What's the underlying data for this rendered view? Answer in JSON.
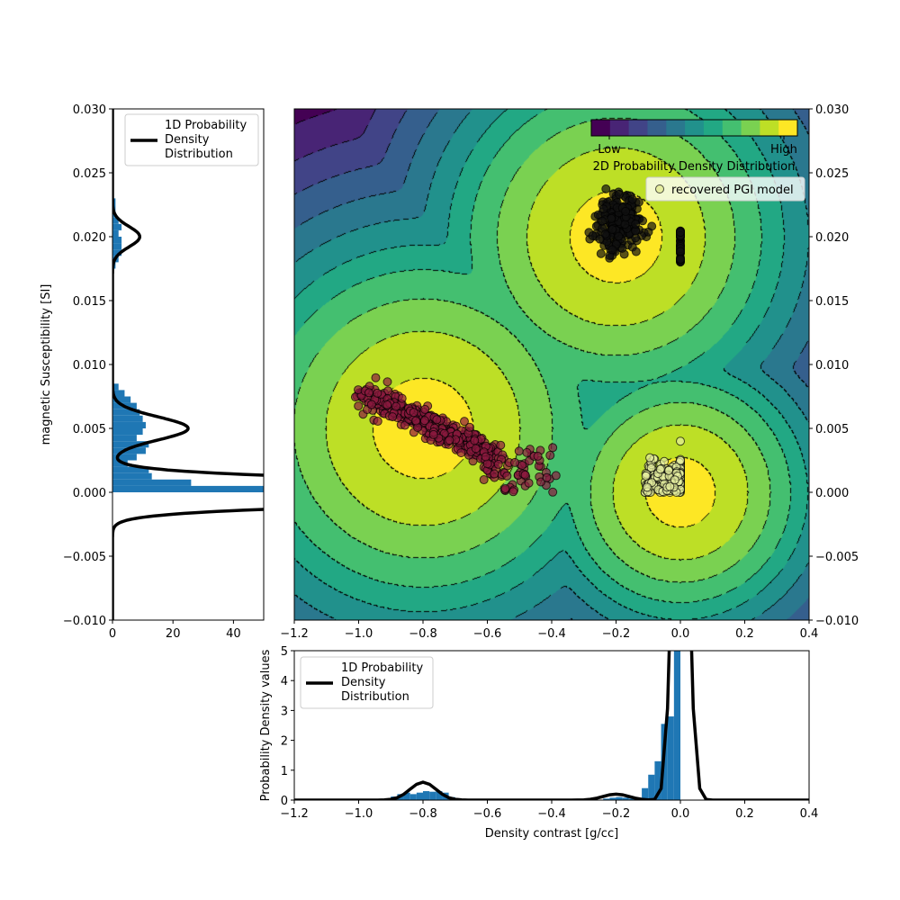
{
  "chart_data": [
    {
      "type": "scatter",
      "xlim": [
        -1.2,
        0.4
      ],
      "ylim": [
        -0.01,
        0.03
      ],
      "xticks": [
        "−1.2",
        "−1.0",
        "−0.8",
        "−0.6",
        "−0.4",
        "−0.2",
        "0.0",
        "0.2",
        "0.4"
      ],
      "xtick_values": [
        -1.2,
        -1.0,
        -0.8,
        -0.6,
        -0.4,
        -0.2,
        0.0,
        0.2,
        0.4
      ],
      "yticks": [
        "−0.010",
        "−0.005",
        "0.000",
        "0.005",
        "0.010",
        "0.015",
        "0.020",
        "0.025",
        "0.030"
      ],
      "ytick_values": [
        -0.01,
        -0.005,
        0,
        0.005,
        0.01,
        0.015,
        0.02,
        0.025,
        0.03
      ],
      "background": {
        "type": "filled-contour",
        "colormap": "viridis",
        "line_style": "dash-dot",
        "components": [
          {
            "mean": [
              -0.8,
              0.005
            ]
          },
          {
            "mean": [
              -0.2,
              0.02
            ]
          },
          {
            "mean": [
              0.0,
              0.0
            ]
          }
        ]
      },
      "colorbar": {
        "label": "2D Probability Density Distribution",
        "low": "Low",
        "high": "High",
        "colors": [
          "#440154",
          "#482475",
          "#414487",
          "#355f8d",
          "#2a788e",
          "#21918c",
          "#22a884",
          "#44bf70",
          "#7ad151",
          "#bddf26",
          "#fde725"
        ]
      },
      "legend": {
        "entries": [
          "recovered PGI model"
        ],
        "placement": "top-right"
      },
      "clusters": [
        {
          "color": "#8b1a3e",
          "from": [
            -0.98,
            0.0077
          ],
          "to": [
            -0.58,
            0.0028
          ],
          "count": 450
        },
        {
          "color": "#111111",
          "center": [
            -0.19,
            0.021
          ],
          "spread": [
            0.035,
            0.0011
          ],
          "count": 260
        },
        {
          "color": "#e6eea0",
          "center": [
            -0.05,
            0.001
          ],
          "spread": [
            0.04,
            0.0007
          ],
          "count": 200
        }
      ]
    },
    {
      "type": "bar",
      "orientation": "horizontal",
      "ylabel": "magnetic Susceptibility [SI]",
      "xlim": [
        0,
        50
      ],
      "xticks": [
        "0",
        "20",
        "40"
      ],
      "xtick_values": [
        0,
        20,
        40
      ],
      "legend": {
        "entries": [
          "1D Probability\nDensity\nDistribution"
        ],
        "lines": [
          "1D Probability",
          "Density",
          "Distribution"
        ],
        "placement": "top-right"
      },
      "bin_width": 0.0005,
      "bins_start": [
        0.0,
        0.0005,
        0.001,
        0.0015,
        0.002,
        0.0025,
        0.003,
        0.0035,
        0.004,
        0.0045,
        0.005,
        0.0055,
        0.006,
        0.0065,
        0.007,
        0.0075,
        0.008,
        0.0175,
        0.018,
        0.0185,
        0.019,
        0.0195,
        0.02,
        0.0205,
        0.021,
        0.0215,
        0.022,
        0.0225
      ],
      "counts": [
        60,
        26,
        13,
        12,
        5,
        8,
        11,
        12,
        8,
        10,
        11,
        10,
        9,
        8,
        6,
        4,
        2,
        1,
        2,
        3,
        3,
        3,
        2,
        3,
        2,
        1,
        1,
        1
      ],
      "kde": [
        {
          "mean": 0.0,
          "sd": 0.0008,
          "peak": 200
        },
        {
          "mean": 0.005,
          "sd": 0.0009,
          "peak": 25
        },
        {
          "mean": 0.02,
          "sd": 0.0008,
          "peak": 9
        }
      ]
    },
    {
      "type": "bar",
      "xlabel": "Density contrast [g/cc]",
      "ylabel": "Probability Density values",
      "xlim": [
        -1.2,
        0.4
      ],
      "ylim": [
        0,
        5
      ],
      "xticks": [
        "−1.2",
        "−1.0",
        "−0.8",
        "−0.6",
        "−0.4",
        "−0.2",
        "0.0",
        "0.2",
        "0.4"
      ],
      "xtick_values": [
        -1.2,
        -1.0,
        -0.8,
        -0.6,
        -0.4,
        -0.2,
        0.0,
        0.2,
        0.4
      ],
      "yticks": [
        "0",
        "1",
        "2",
        "3",
        "4",
        "5"
      ],
      "ytick_values": [
        0,
        1,
        2,
        3,
        4,
        5
      ],
      "legend": {
        "entries": [
          "1D Probability\nDensity\nDistribution"
        ],
        "lines": [
          "1D Probability",
          "Density",
          "Distribution"
        ],
        "placement": "top-left"
      },
      "bin_width": 0.02,
      "bins_start": [
        -0.92,
        -0.9,
        -0.88,
        -0.86,
        -0.84,
        -0.82,
        -0.8,
        -0.78,
        -0.76,
        -0.74,
        -0.72,
        -0.24,
        -0.22,
        -0.2,
        -0.18,
        -0.16,
        -0.14,
        -0.12,
        -0.1,
        -0.08,
        -0.06,
        -0.04,
        -0.02
      ],
      "counts": [
        0.05,
        0.12,
        0.2,
        0.25,
        0.2,
        0.25,
        0.3,
        0.28,
        0.3,
        0.25,
        0.1,
        0.05,
        0.08,
        0.1,
        0.08,
        0.05,
        0.05,
        0.4,
        0.85,
        1.3,
        2.55,
        2.8,
        20
      ],
      "kde": [
        {
          "mean": -0.8,
          "sd": 0.04,
          "peak": 0.6
        },
        {
          "mean": -0.2,
          "sd": 0.04,
          "peak": 0.2
        },
        {
          "mean": 0.0,
          "sd": 0.022,
          "peak": 16
        }
      ]
    }
  ]
}
